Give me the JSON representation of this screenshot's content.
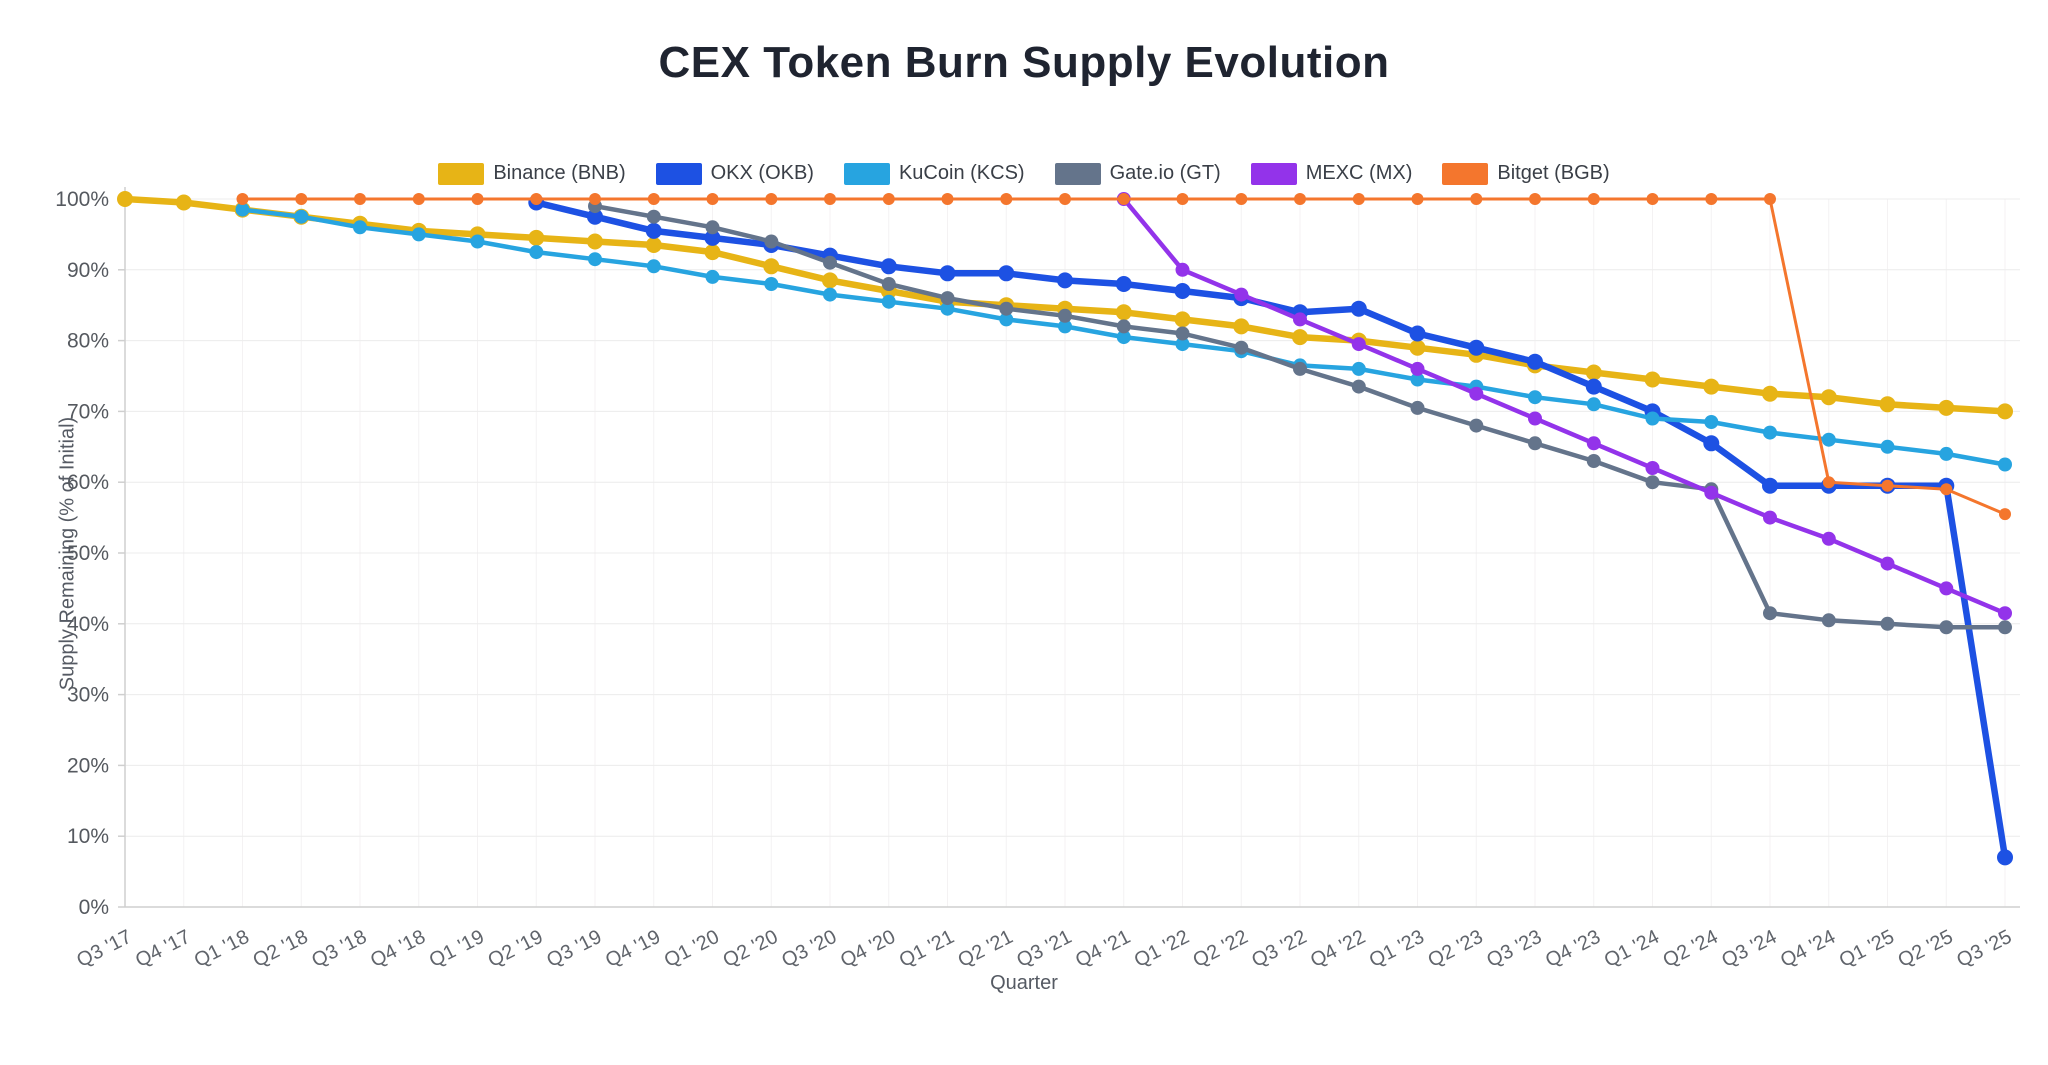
{
  "title": "CEX Token Burn Supply Evolution",
  "chart_data": {
    "type": "line",
    "title": "CEX Token Burn Supply Evolution",
    "xlabel": "Quarter",
    "ylabel": "Supply Remaining (% of Initial)",
    "ylim": [
      0,
      100
    ],
    "ytick_step": 10,
    "ytick_suffix": "%",
    "grid": true,
    "legend_position": "top",
    "categories": [
      "Q3 '17",
      "Q4 '17",
      "Q1 '18",
      "Q2 '18",
      "Q3 '18",
      "Q4 '18",
      "Q1 '19",
      "Q2 '19",
      "Q3 '19",
      "Q4 '19",
      "Q1 '20",
      "Q2 '20",
      "Q3 '20",
      "Q4 '20",
      "Q1 '21",
      "Q2 '21",
      "Q3 '21",
      "Q4 '21",
      "Q1 '22",
      "Q2 '22",
      "Q3 '22",
      "Q4 '22",
      "Q1 '23",
      "Q2 '23",
      "Q3 '23",
      "Q4 '23",
      "Q1 '24",
      "Q2 '24",
      "Q3 '24",
      "Q4 '24",
      "Q1 '25",
      "Q2 '25",
      "Q3 '25"
    ],
    "series": [
      {
        "name": "Binance (BNB)",
        "color": "#e7b416",
        "line_width": 6.5,
        "dot_radius": 8,
        "values": [
          100,
          99.5,
          98.5,
          97.5,
          96.5,
          95.5,
          95,
          94.5,
          94,
          93.5,
          92.5,
          90.5,
          88.5,
          87,
          85.5,
          85,
          84.5,
          84,
          83,
          82,
          80.5,
          80,
          79,
          78,
          76.5,
          75.5,
          74.5,
          73.5,
          72.5,
          72,
          71,
          70.5,
          70
        ]
      },
      {
        "name": "OKX (OKB)",
        "color": "#1d51e3",
        "line_width": 6.5,
        "dot_radius": 8,
        "values": [
          null,
          null,
          null,
          null,
          null,
          null,
          null,
          99.5,
          97.5,
          95.5,
          94.5,
          93.5,
          92,
          90.5,
          89.5,
          89.5,
          88.5,
          88,
          87,
          86,
          84,
          84.5,
          81,
          79,
          77,
          73.5,
          70,
          65.5,
          59.5,
          59.5,
          59.5,
          59.5,
          7
        ]
      },
      {
        "name": "KuCoin (KCS)",
        "color": "#27a4e0",
        "line_width": 4.5,
        "dot_radius": 7,
        "values": [
          null,
          null,
          98.5,
          97.5,
          96,
          95,
          94,
          92.5,
          91.5,
          90.5,
          89,
          88,
          86.5,
          85.5,
          84.5,
          83,
          82,
          80.5,
          79.5,
          78.5,
          76.5,
          76,
          74.5,
          73.5,
          72,
          71,
          69,
          68.5,
          67,
          66,
          65,
          64,
          62.5
        ]
      },
      {
        "name": "Gate.io (GT)",
        "color": "#64748b",
        "line_width": 4.5,
        "dot_radius": 7,
        "values": [
          null,
          null,
          null,
          null,
          null,
          null,
          null,
          null,
          99,
          97.5,
          96,
          94,
          91,
          88,
          86,
          84.5,
          83.5,
          82,
          81,
          79,
          76,
          73.5,
          70.5,
          68,
          65.5,
          63,
          60,
          59,
          41.5,
          40.5,
          40,
          39.5,
          39.5
        ]
      },
      {
        "name": "MEXC (MX)",
        "color": "#9333ea",
        "line_width": 4.5,
        "dot_radius": 7,
        "values": [
          null,
          null,
          null,
          null,
          null,
          null,
          null,
          null,
          null,
          null,
          null,
          null,
          null,
          null,
          null,
          null,
          null,
          100,
          90,
          86.5,
          83,
          79.5,
          76,
          72.5,
          69,
          65.5,
          62,
          58.5,
          55,
          52,
          48.5,
          45,
          41.5
        ]
      },
      {
        "name": "Bitget (BGB)",
        "color": "#f4762d",
        "line_width": 3,
        "dot_radius": 6,
        "values": [
          null,
          null,
          100,
          100,
          100,
          100,
          100,
          100,
          100,
          100,
          100,
          100,
          100,
          100,
          100,
          100,
          100,
          100,
          100,
          100,
          100,
          100,
          100,
          100,
          100,
          100,
          100,
          100,
          100,
          60,
          59.5,
          59,
          55.5
        ]
      }
    ]
  }
}
